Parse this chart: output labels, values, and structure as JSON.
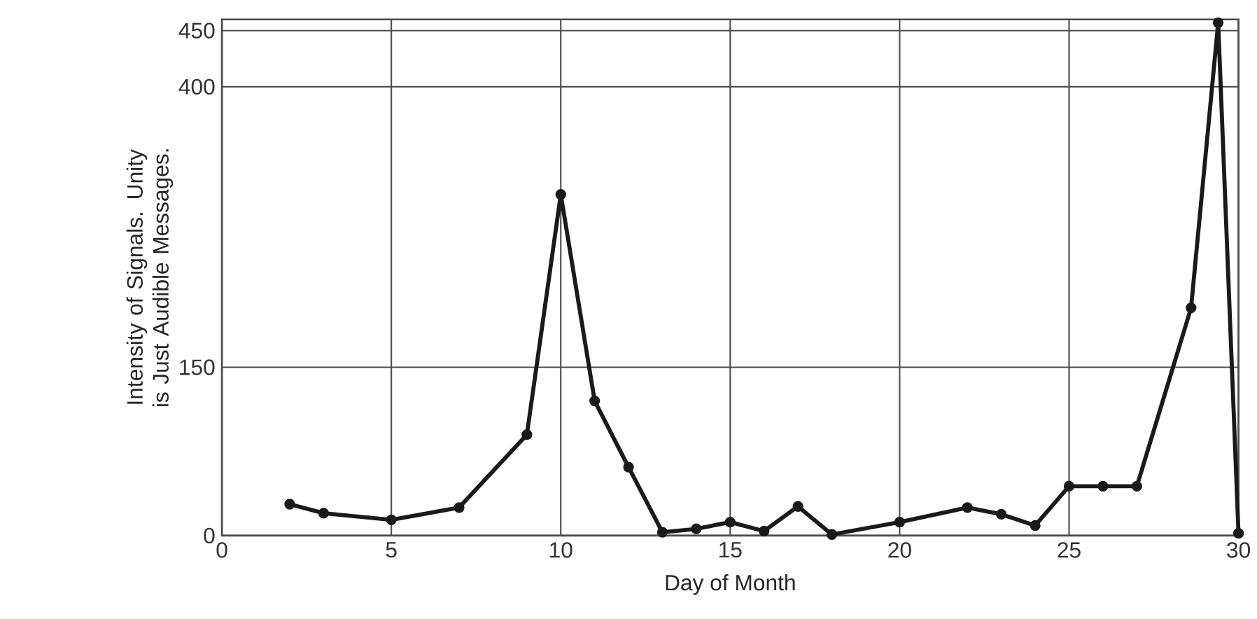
{
  "chart_data": {
    "type": "line",
    "xlabel": "Day of Month",
    "ylabel": "Intensity of Signals. Unity is Just Audible Messages.",
    "series": [
      {
        "color": "#1a1a1a",
        "x": [
          2,
          3,
          5,
          7,
          9,
          10,
          11,
          12,
          13,
          14,
          15,
          16,
          17,
          18,
          20,
          22,
          23,
          24,
          25,
          26,
          27,
          28.6,
          29.4,
          30
        ],
        "values": [
          28,
          20,
          14,
          25,
          90,
          304,
          120,
          61,
          3,
          6,
          12,
          4,
          26,
          1,
          12,
          25,
          19,
          9,
          44,
          44,
          44,
          203,
          457,
          2
        ]
      }
    ],
    "xlim": [
      0,
      30
    ],
    "ylim": [
      0,
      460
    ],
    "xticks": [
      0,
      5,
      10,
      15,
      20,
      25,
      30
    ],
    "yticks": [
      0,
      150,
      400,
      450
    ],
    "grid": true,
    "marker": "circle",
    "line_style": "solid"
  }
}
